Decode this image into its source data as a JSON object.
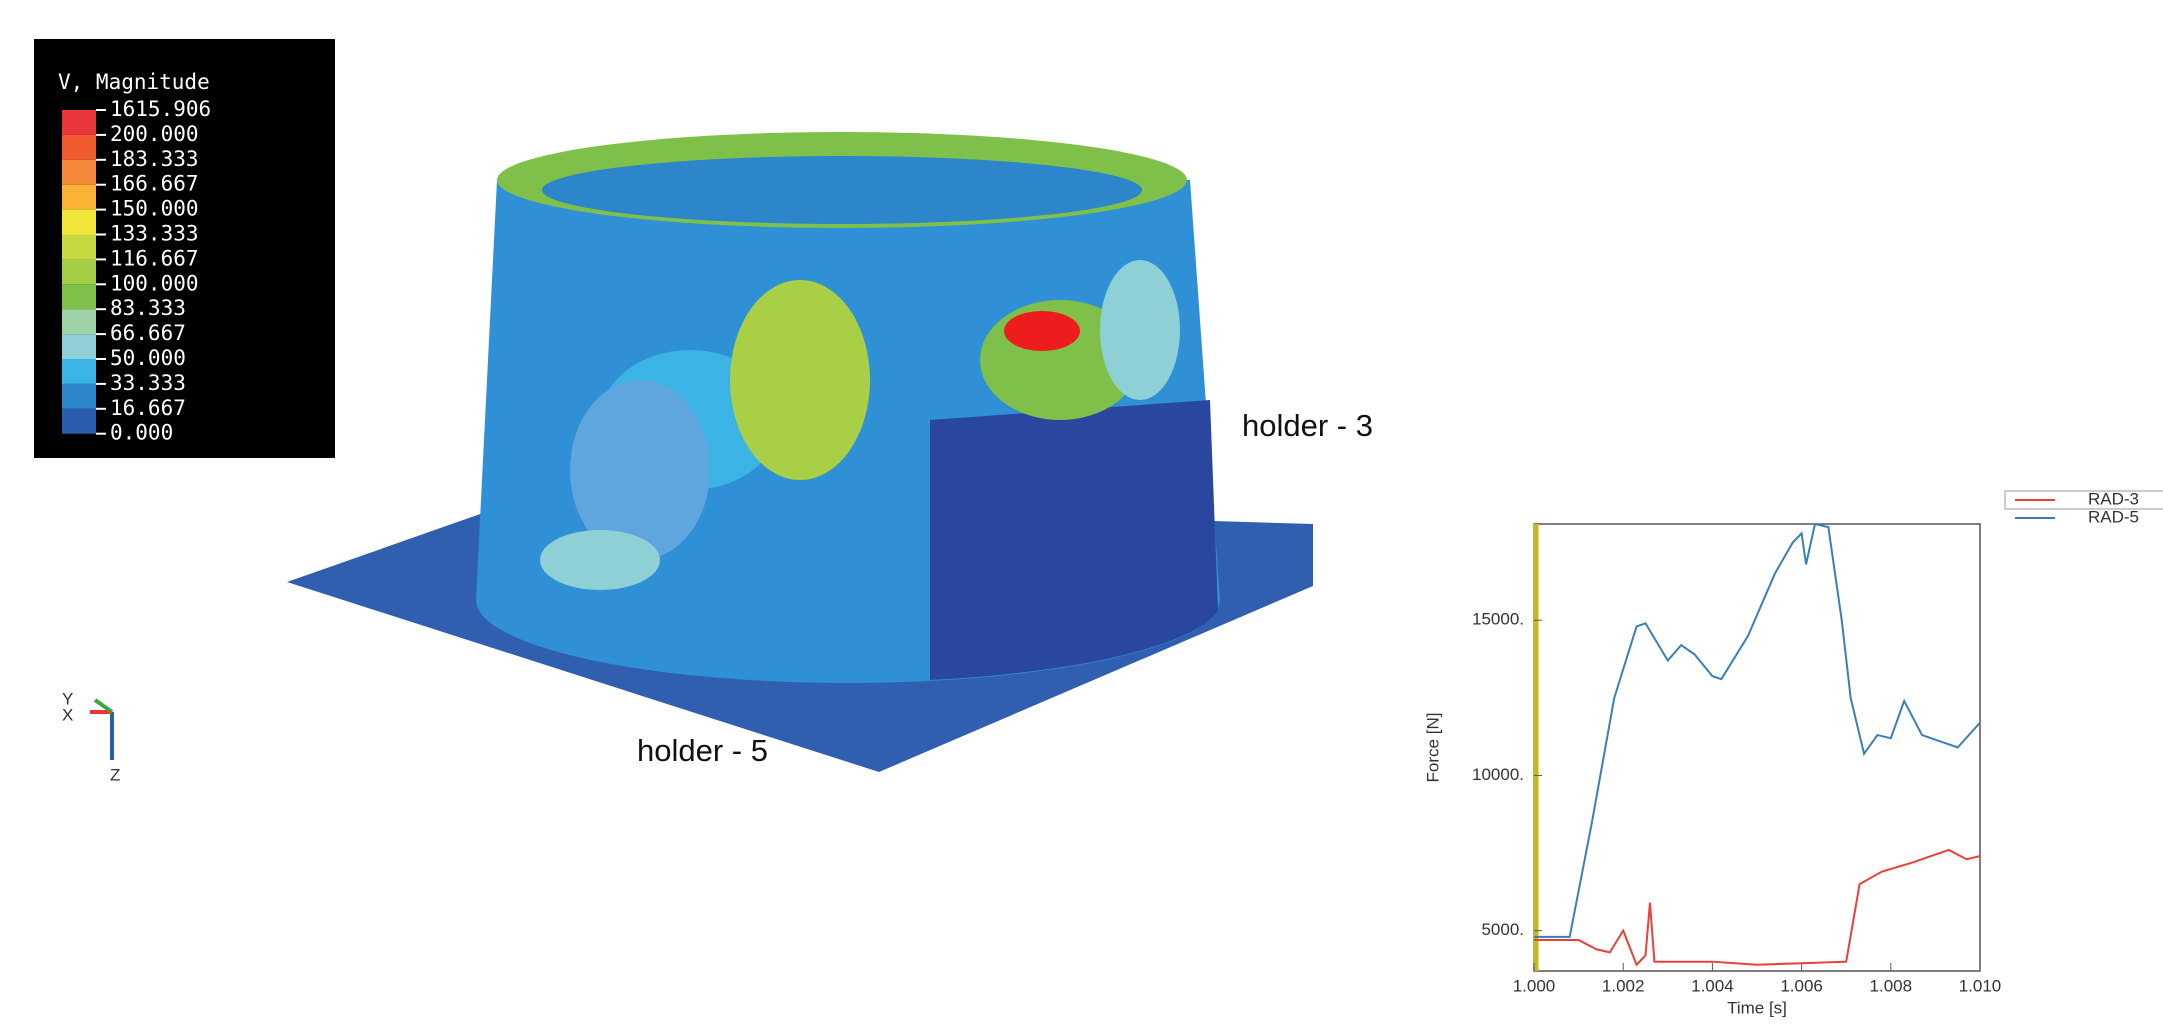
{
  "legend": {
    "title": "V, Magnitude",
    "labels": [
      "1615.906",
      "200.000",
      "183.333",
      "166.667",
      "150.000",
      "133.333",
      "116.667",
      "100.000",
      "83.333",
      "66.667",
      "50.000",
      "33.333",
      "16.667",
      "0.000"
    ],
    "colors": [
      "#e8363a",
      "#ef5a2f",
      "#f4873a",
      "#f9b233",
      "#f3e63b",
      "#c6d940",
      "#a4ce46",
      "#7fc04a",
      "#9ed3a8",
      "#8ed0d6",
      "#3bb4e5",
      "#2d86c9",
      "#2a5cb0"
    ]
  },
  "annotations": [
    "holder - 3",
    "holder - 5"
  ],
  "triad": {
    "y": "Y",
    "x": "X",
    "z": "Z"
  },
  "chart_data": {
    "type": "line",
    "xlabel": "Time [s]",
    "ylabel": "Force [N]",
    "xlim": [
      1.0,
      1.01
    ],
    "ylim": [
      3700,
      18100
    ],
    "xticks": [
      {
        "value": 1.0,
        "label": "1.000"
      },
      {
        "value": 1.002,
        "label": "1.002"
      },
      {
        "value": 1.004,
        "label": "1.004"
      },
      {
        "value": 1.006,
        "label": "1.006"
      },
      {
        "value": 1.008,
        "label": "1.008"
      },
      {
        "value": 1.01,
        "label": "1.010"
      }
    ],
    "yticks": [
      {
        "value": 5000,
        "label": "5000."
      },
      {
        "value": 10000,
        "label": "10000."
      },
      {
        "value": 15000,
        "label": "15000."
      }
    ],
    "series": [
      {
        "name": "RAD-3",
        "color": "#e8403a",
        "x": [
          1.0,
          1.001,
          1.0014,
          1.0017,
          1.002,
          1.0023,
          1.0025,
          1.0026,
          1.0027,
          1.004,
          1.005,
          1.006,
          1.007,
          1.0073,
          1.0078,
          1.0085,
          1.0093,
          1.0097,
          1.01
        ],
        "values": [
          4700,
          4700,
          4400,
          4300,
          5000,
          3900,
          4200,
          5900,
          4000,
          4000,
          3900,
          3950,
          4000,
          6500,
          6900,
          7200,
          7600,
          7300,
          7400
        ]
      },
      {
        "name": "RAD-5",
        "color": "#3a7fb8",
        "x": [
          1.0,
          1.0008,
          1.0013,
          1.0018,
          1.0023,
          1.0025,
          1.003,
          1.0033,
          1.0036,
          1.004,
          1.0042,
          1.0048,
          1.0054,
          1.0058,
          1.006,
          1.0061,
          1.0063,
          1.0066,
          1.0069,
          1.0071,
          1.0074,
          1.0077,
          1.008,
          1.0083,
          1.0087,
          1.0095,
          1.01
        ],
        "values": [
          4800,
          4800,
          8500,
          12500,
          14800,
          14900,
          13700,
          14200,
          13900,
          13200,
          13100,
          14500,
          16500,
          17500,
          17800,
          16800,
          18100,
          18000,
          15000,
          12500,
          10700,
          11300,
          11200,
          12400,
          11300,
          10900,
          11700
        ]
      }
    ]
  }
}
